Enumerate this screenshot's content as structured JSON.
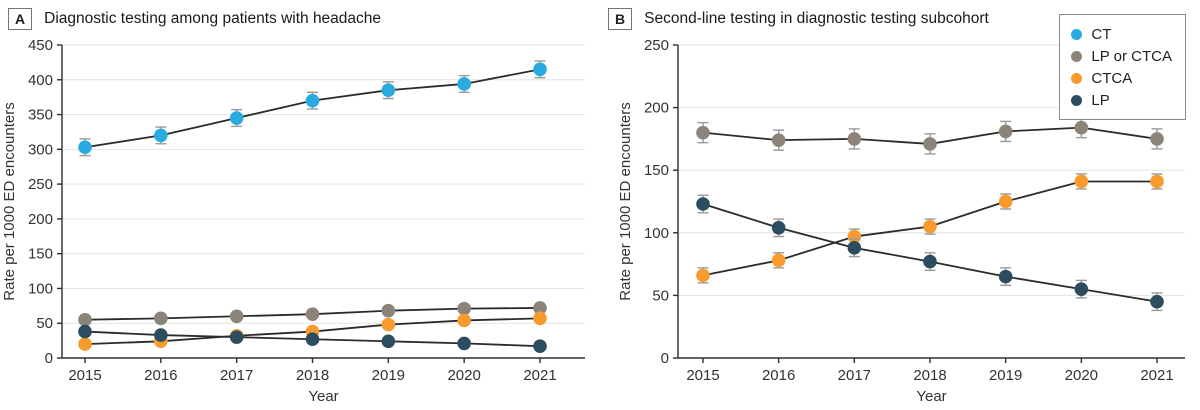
{
  "figure": {
    "panels": [
      {
        "label": "A",
        "title": "Diagnostic testing among patients with headache",
        "xlabel": "Year",
        "ylabel": "Rate per 1000 ED encounters"
      },
      {
        "label": "B",
        "title": "Second-line testing in diagnostic testing subcohort",
        "xlabel": "Year",
        "ylabel": "Rate per 1000 ED encounters"
      }
    ]
  },
  "legend": {
    "entries": [
      {
        "label": "CT",
        "color": "#29abe2"
      },
      {
        "label": "LP or CTCA",
        "color": "#8c8479"
      },
      {
        "label": "CTCA",
        "color": "#f89b2e"
      },
      {
        "label": "LP",
        "color": "#2b4d5f"
      }
    ],
    "position": "top-right"
  },
  "chart_data": [
    {
      "type": "line",
      "title": "Diagnostic testing among patients with headache",
      "categories": [
        "2015",
        "2016",
        "2017",
        "2018",
        "2019",
        "2020",
        "2021"
      ],
      "xlabel": "Year",
      "ylabel": "Rate per 1000 ED encounters",
      "ylim": [
        0,
        450
      ],
      "yticks": [
        0,
        50,
        100,
        150,
        200,
        250,
        300,
        350,
        400,
        450
      ],
      "grid": true,
      "error_bars": true,
      "series": [
        {
          "name": "CT",
          "color": "#29abe2",
          "values": [
            303,
            320,
            345,
            370,
            385,
            394,
            415
          ],
          "error": 12
        },
        {
          "name": "LP or CTCA",
          "color": "#8c8479",
          "values": [
            55,
            57,
            60,
            63,
            68,
            71,
            72
          ],
          "error": 4
        },
        {
          "name": "CTCA",
          "color": "#f89b2e",
          "values": [
            20,
            24,
            32,
            38,
            48,
            54,
            57
          ],
          "error": 4
        },
        {
          "name": "LP",
          "color": "#2b4d5f",
          "values": [
            38,
            33,
            30,
            27,
            24,
            21,
            17
          ],
          "error": 4
        }
      ]
    },
    {
      "type": "line",
      "title": "Second-line testing in diagnostic testing subcohort",
      "categories": [
        "2015",
        "2016",
        "2017",
        "2018",
        "2019",
        "2020",
        "2021"
      ],
      "xlabel": "Year",
      "ylabel": "Rate per 1000 ED encounters",
      "ylim": [
        0,
        250
      ],
      "yticks": [
        0,
        50,
        100,
        150,
        200,
        250
      ],
      "grid": true,
      "error_bars": true,
      "series": [
        {
          "name": "LP or CTCA",
          "color": "#8c8479",
          "values": [
            180,
            174,
            175,
            171,
            181,
            184,
            175
          ],
          "error": 8
        },
        {
          "name": "CTCA",
          "color": "#f89b2e",
          "values": [
            66,
            78,
            97,
            105,
            125,
            141,
            141
          ],
          "error": 6
        },
        {
          "name": "LP",
          "color": "#2b4d5f",
          "values": [
            123,
            104,
            88,
            77,
            65,
            55,
            45
          ],
          "error": 7
        }
      ]
    }
  ],
  "colors": {
    "line": "#2b2b2b",
    "grid": "#e4e4e4",
    "axis": "#2e2e2e",
    "text": "#333333",
    "error_bar": "#999999",
    "background": "#ffffff"
  }
}
